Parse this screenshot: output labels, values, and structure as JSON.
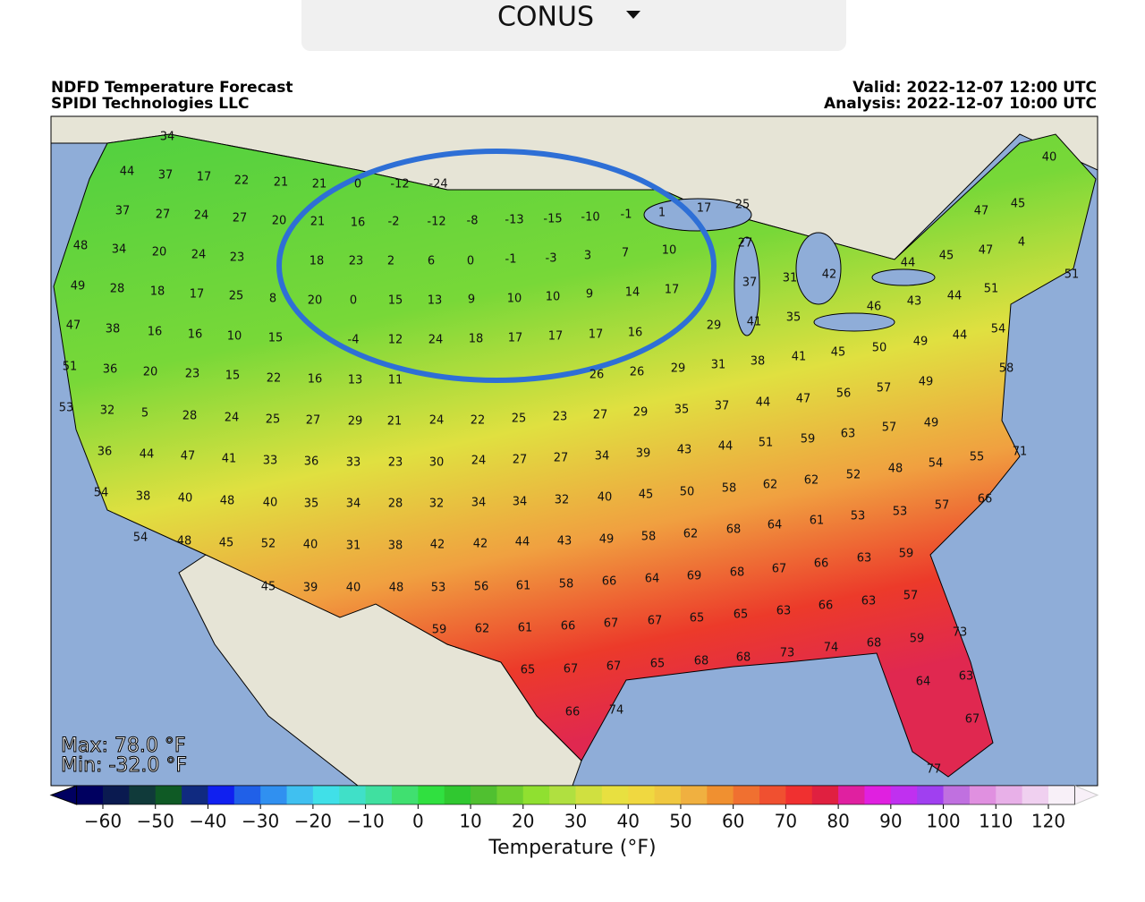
{
  "header": {
    "region": "CONUS"
  },
  "map": {
    "title": "NDFD Temperature Forecast",
    "subtitle": "SPIDI Technologies LLC",
    "valid": "Valid: 2022-12-07 12:00 UTC",
    "analysis": "Analysis: 2022-12-07 10:00 UTC",
    "max": "Max: 78.0 °F",
    "min": "Min: -32.0 °F",
    "labels": [
      34,
      44,
      37,
      17,
      22,
      21,
      21,
      0,
      -12,
      -24,
      37,
      27,
      24,
      27,
      20,
      21,
      16,
      -2,
      -12,
      -8,
      -13,
      -15,
      -10,
      -1,
      1,
      17,
      25,
      40,
      45,
      47,
      48,
      34,
      20,
      24,
      23,
      18,
      23,
      2,
      6,
      0,
      -1,
      -3,
      3,
      7,
      10,
      27,
      4,
      47,
      45,
      44,
      49,
      28,
      18,
      17,
      25,
      8,
      20,
      0,
      15,
      13,
      9,
      10,
      10,
      9,
      14,
      17,
      37,
      31,
      42,
      51,
      51,
      43,
      44,
      47,
      38,
      16,
      16,
      10,
      15,
      -4,
      12,
      24,
      18,
      17,
      17,
      17,
      16,
      29,
      41,
      35,
      46,
      49,
      44,
      54,
      51,
      36,
      20,
      23,
      15,
      22,
      16,
      13,
      11,
      26,
      26,
      29,
      31,
      38,
      41,
      45,
      50,
      58,
      53,
      32,
      5,
      28,
      24,
      25,
      27,
      29,
      21,
      24,
      22,
      25,
      23,
      27,
      29,
      35,
      37,
      44,
      47,
      56,
      57,
      49,
      36,
      44,
      47,
      41,
      33,
      36,
      33,
      23,
      30,
      24,
      27,
      27,
      34,
      39,
      43,
      44,
      51,
      59,
      63,
      57,
      49,
      71,
      55,
      54,
      38,
      40,
      48,
      40,
      35,
      34,
      28,
      32,
      34,
      34,
      32,
      40,
      45,
      50,
      58,
      62,
      62,
      52,
      48,
      54,
      54,
      48,
      45,
      52,
      40,
      31,
      38,
      42,
      42,
      44,
      43,
      49,
      58,
      62,
      68,
      64,
      61,
      53,
      53,
      57,
      66,
      45,
      39,
      40,
      48,
      53,
      56,
      61,
      58,
      66,
      64,
      69,
      68,
      67,
      66,
      63,
      59,
      59,
      62,
      61,
      66,
      67,
      67,
      65,
      65,
      63,
      66,
      63,
      57,
      65,
      67,
      67,
      65,
      68,
      68,
      73,
      74,
      68,
      59,
      73,
      66,
      74,
      64,
      63,
      67,
      77
    ]
  },
  "colorbar": {
    "label": "Temperature (°F)",
    "ticks": [
      {
        "value": -60,
        "label": "−60"
      },
      {
        "value": -50,
        "label": "−50"
      },
      {
        "value": -40,
        "label": "−40"
      },
      {
        "value": -30,
        "label": "−30"
      },
      {
        "value": -20,
        "label": "−20"
      },
      {
        "value": -10,
        "label": "−10"
      },
      0,
      10,
      20,
      30,
      40,
      50,
      60,
      70,
      80,
      90,
      100,
      110,
      120
    ],
    "colors": [
      "#000060",
      "#0a1a50",
      "#103a3a",
      "#0f5a25",
      "#102a80",
      "#1020f0",
      "#2060e8",
      "#3090f0",
      "#40c0f0",
      "#40e0e8",
      "#40e0c8",
      "#40e0a0",
      "#40e070",
      "#30e040",
      "#30c830",
      "#50c030",
      "#70d030",
      "#90e030",
      "#b0e040",
      "#d0e040",
      "#e8e040",
      "#f0d840",
      "#f0c840",
      "#f0b040",
      "#f09030",
      "#f07030",
      "#f05030",
      "#f03030",
      "#e02040",
      "#e020a0",
      "#e020e0",
      "#c030f0",
      "#a040f0",
      "#c070e0",
      "#e090e0",
      "#e8b0e8",
      "#f0d0f0",
      "#f8f0f8"
    ]
  }
}
